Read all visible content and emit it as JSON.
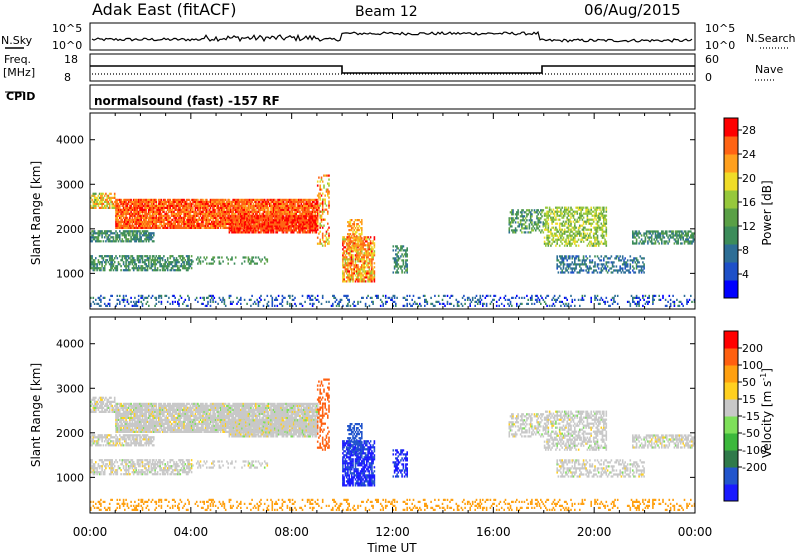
{
  "header": {
    "title": "Adak East (fitACF)",
    "beam": "Beam 12",
    "date": "06/Aug/2015"
  },
  "top_panels": {
    "nsky_label": "N.Sky",
    "nsky_ticks": [
      "10^5",
      "10^0"
    ],
    "nsearch_label": "N.Search",
    "nsearch_ticks": [
      "10^5",
      "10^0"
    ],
    "freq_label": "Freq.",
    "freq_unit": "[MHz]",
    "freq_ticks": [
      "18",
      "8"
    ],
    "nave_label": "Nave",
    "nave_ticks": [
      "60",
      "0"
    ],
    "cpid_label": "CPID",
    "cpid_text": "normalsound (fast) -157 RF"
  },
  "chart_data": [
    {
      "type": "heatmap",
      "name": "power",
      "ylabel": "Slant Range [km]",
      "ylim": [
        200,
        4600
      ],
      "yticks": [
        1000,
        2000,
        3000,
        4000
      ],
      "xlim": [
        0,
        24
      ],
      "xticks": [
        "00:00",
        "04:00",
        "08:00",
        "12:00",
        "16:00",
        "20:00",
        "00:00"
      ],
      "colorbar": {
        "label": "Power [dB]",
        "ticks": [
          4,
          8,
          12,
          16,
          20,
          24,
          28
        ],
        "range": [
          0,
          30
        ],
        "colors": [
          "#0000ff",
          "#1e50c8",
          "#2d6e96",
          "#3c8c5a",
          "#5aa046",
          "#96c83c",
          "#f0dc28",
          "#ffa01e",
          "#ff6414",
          "#ff0000"
        ]
      }
    },
    {
      "type": "heatmap",
      "name": "velocity",
      "ylabel": "Slant Range [km]",
      "ylim": [
        200,
        4600
      ],
      "yticks": [
        1000,
        2000,
        3000,
        4000
      ],
      "xlim": [
        0,
        24
      ],
      "xticks": [
        "00:00",
        "04:00",
        "08:00",
        "12:00",
        "16:00",
        "20:00",
        "00:00"
      ],
      "xlabel": "Time UT",
      "colorbar": {
        "label": "Velocity [m s",
        "label_sup": "-1",
        "label_end": "]",
        "ticks": [
          "200",
          "100",
          "50",
          "15",
          "-15",
          "-50",
          "-100",
          "-200"
        ],
        "colors": [
          "#1a1aff",
          "#2255cc",
          "#2f7a4a",
          "#3cb83c",
          "#7ee05a",
          "#c8c8c8",
          "#ffd020",
          "#ffa010",
          "#ff6010",
          "#ff0000"
        ]
      }
    }
  ]
}
